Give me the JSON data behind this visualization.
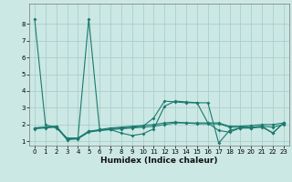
{
  "xlabel": "Humidex (Indice chaleur)",
  "bg_color": "#cce8e4",
  "grid_color": "#aacfcb",
  "line_color": "#1a7a6e",
  "xlim": [
    -0.5,
    23.5
  ],
  "ylim": [
    0.75,
    9.2
  ],
  "yticks": [
    1,
    2,
    3,
    4,
    5,
    6,
    7,
    8
  ],
  "xticks": [
    0,
    1,
    2,
    3,
    4,
    5,
    6,
    7,
    8,
    9,
    10,
    11,
    12,
    13,
    14,
    15,
    16,
    17,
    18,
    19,
    20,
    21,
    22,
    23
  ],
  "line_a": [
    8.3,
    2.0,
    1.8,
    1.2,
    1.2,
    8.3,
    1.7,
    1.7,
    1.5,
    1.35,
    1.45,
    1.75,
    3.1,
    3.4,
    3.35,
    3.3,
    3.3,
    0.9,
    1.65,
    1.8,
    1.8,
    1.9,
    1.5,
    2.1
  ],
  "line_b": [
    1.8,
    1.85,
    1.9,
    1.15,
    1.2,
    1.6,
    1.7,
    1.8,
    1.85,
    1.9,
    1.95,
    2.0,
    2.1,
    2.15,
    2.1,
    2.1,
    2.1,
    2.1,
    1.9,
    1.9,
    1.95,
    2.0,
    2.0,
    2.1
  ],
  "line_c": [
    1.8,
    1.85,
    1.9,
    1.15,
    1.2,
    1.6,
    1.65,
    1.75,
    1.8,
    1.85,
    1.9,
    2.4,
    3.4,
    3.35,
    3.3,
    3.3,
    2.1,
    1.65,
    1.55,
    1.8,
    1.8,
    1.85,
    1.5,
    2.1
  ],
  "line_d": [
    1.75,
    1.8,
    1.85,
    1.1,
    1.15,
    1.55,
    1.65,
    1.7,
    1.75,
    1.8,
    1.85,
    1.9,
    2.0,
    2.1,
    2.1,
    2.05,
    2.05,
    2.05,
    1.85,
    1.85,
    1.85,
    1.9,
    1.85,
    2.0
  ],
  "marker_style": "D",
  "marker_size": 2.0,
  "line_width": 0.8,
  "xlabel_fontsize": 6.5,
  "tick_fontsize": 5.0
}
